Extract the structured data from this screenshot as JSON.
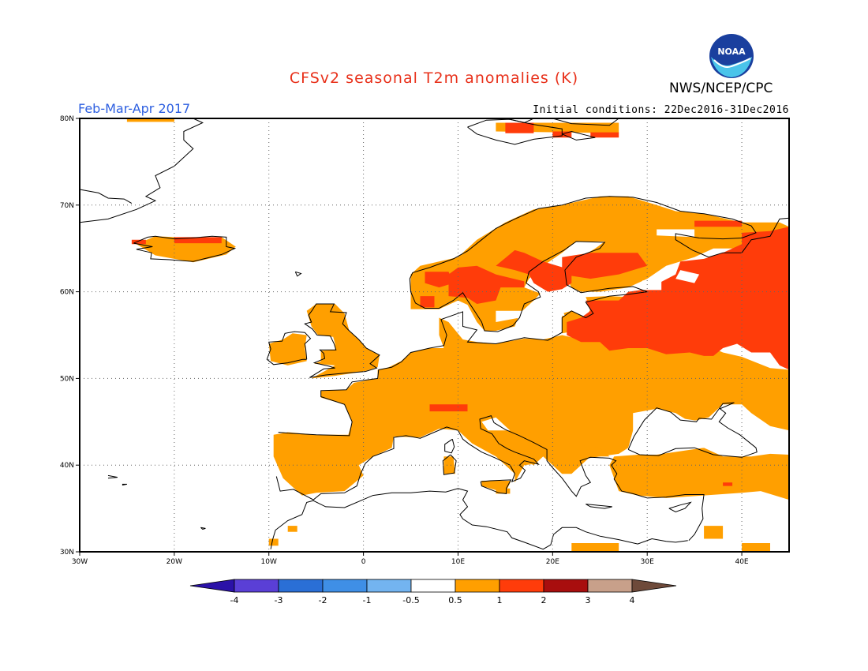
{
  "header": {
    "title": "CFSv2 seasonal T2m anomalies (K)",
    "agency": "NWS/NCEP/CPC",
    "period": "Feb-Mar-Apr 2017",
    "initial_conditions": "Initial conditions: 22Dec2016-31Dec2016",
    "logo_text": "NOAA"
  },
  "map": {
    "region": "Europe",
    "lon_range": [
      -30,
      45
    ],
    "lat_range": [
      30,
      80
    ],
    "lat_labels": [
      "80N",
      "70N",
      "60N",
      "50N",
      "40N",
      "30N"
    ],
    "lon_labels": [
      "30W",
      "20W",
      "10W",
      "0",
      "10E",
      "20E",
      "30E",
      "40E"
    ],
    "grid": "dotted"
  },
  "colorbar": {
    "labels": [
      "-4",
      "-3",
      "-2",
      "-1",
      "-0.5",
      "0.5",
      "1",
      "2",
      "3",
      "4"
    ],
    "colors": [
      "#2b12a8",
      "#5a3fd6",
      "#2a6fd6",
      "#3f8fe6",
      "#73b4f0",
      "#ffffff",
      "#ff9f00",
      "#ff3c0a",
      "#a80e0e",
      "#c8a08a",
      "#6e4a3a"
    ]
  },
  "legend_colors": {
    "weak_warm": "#ff9f00",
    "warm": "#ff3c0a",
    "land_outline": "#000000"
  }
}
